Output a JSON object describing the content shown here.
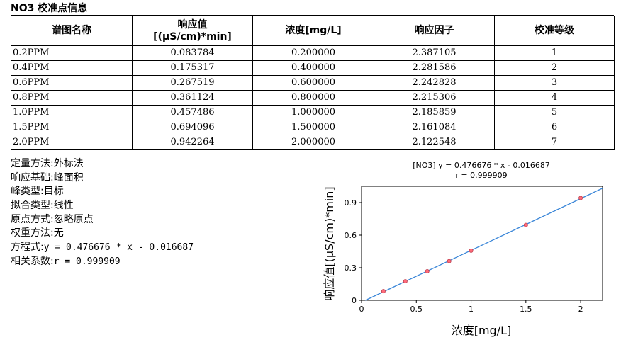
{
  "title": "NO3 校准点信息",
  "table": {
    "headers": [
      "谱图名称",
      "响应值",
      "[(μS/cm)*min]",
      "浓度[mg/L]",
      "响应因子",
      "校准等级"
    ],
    "rows": [
      {
        "name": "0.2PPM",
        "response": "0.083784",
        "conc": "0.200000",
        "factor": "2.387105",
        "level": "1"
      },
      {
        "name": "0.4PPM",
        "response": "0.175317",
        "conc": "0.400000",
        "factor": "2.281586",
        "level": "2"
      },
      {
        "name": "0.6PPM",
        "response": "0.267519",
        "conc": "0.600000",
        "factor": "2.242828",
        "level": "3"
      },
      {
        "name": "0.8PPM",
        "response": "0.361124",
        "conc": "0.800000",
        "factor": "2.215306",
        "level": "4"
      },
      {
        "name": "1.0PPM",
        "response": "0.457486",
        "conc": "1.000000",
        "factor": "2.185859",
        "level": "5"
      },
      {
        "name": "1.5PPM",
        "response": "0.694096",
        "conc": "1.500000",
        "factor": "2.161084",
        "level": "6"
      },
      {
        "name": "2.0PPM",
        "response": "0.942264",
        "conc": "2.000000",
        "factor": "2.122548",
        "level": "7"
      }
    ]
  },
  "info": {
    "quant_method": {
      "label": "定量方法:",
      "value": "外标法"
    },
    "response_basis": {
      "label": "响应基础:",
      "value": "峰面积"
    },
    "peak_type": {
      "label": "峰类型:",
      "value": "目标"
    },
    "fit_type": {
      "label": "拟合类型:",
      "value": "线性"
    },
    "origin": {
      "label": "原点方式:",
      "value": "忽略原点"
    },
    "weighting": {
      "label": "权重方法:",
      "value": "无"
    },
    "equation": {
      "label": "方程式:",
      "value": "y = 0.476676 * x - 0.016687"
    },
    "correlation": {
      "label": "相关系数:",
      "value": "r = 0.999909"
    }
  },
  "chart_data": {
    "type": "scatter",
    "title": "[NO3] y = 0.476676 * x - 0.016687",
    "subtitle": "r = 0.999909",
    "xlabel": "浓度[mg/L]",
    "ylabel": "响应值[(μS/cm)*min]",
    "xlim": [
      0,
      2.2
    ],
    "ylim": [
      0,
      1.05
    ],
    "xticks": [
      0,
      0.5,
      1,
      1.5,
      2
    ],
    "xtick_labels": [
      "0",
      "0.5",
      "1",
      "1.5",
      "2"
    ],
    "yticks": [
      0,
      0.3,
      0.6,
      0.9
    ],
    "ytick_labels": [
      "0",
      "0.3",
      "0.6",
      "0.9"
    ],
    "grid": false,
    "points": {
      "x": [
        0.2,
        0.4,
        0.6,
        0.8,
        1.0,
        1.5,
        2.0
      ],
      "y": [
        0.083784,
        0.175317,
        0.267519,
        0.361124,
        0.457486,
        0.694096,
        0.942264
      ]
    },
    "fit": {
      "slope": 0.476676,
      "intercept": -0.016687
    },
    "colors": {
      "line": "#3a86d8",
      "marker_fill": "#ff6b7a",
      "marker_edge": "#c0404f",
      "axis": "#000000"
    }
  }
}
